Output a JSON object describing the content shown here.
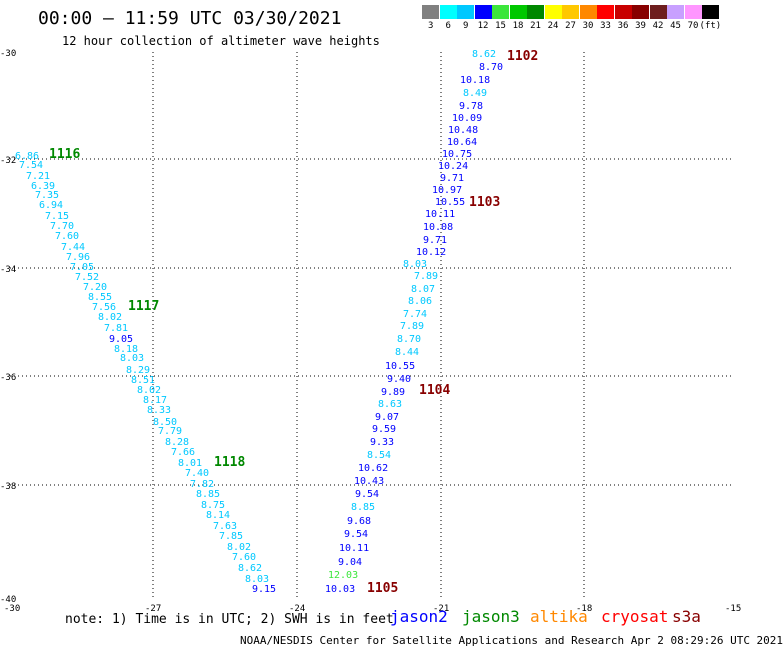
{
  "header": {
    "title": "00:00 – 11:59 UTC 03/30/2021",
    "subtitle": "12 hour collection of altimeter wave heights"
  },
  "colorbar": {
    "labels": [
      "3",
      "6",
      "9",
      "12",
      "15",
      "18",
      "21",
      "24",
      "27",
      "30",
      "33",
      "36",
      "39",
      "42",
      "45",
      "70",
      "(ft)"
    ],
    "colors": [
      "#808080",
      "#00ffff",
      "#00c8ff",
      "#0000ff",
      "#3ce63c",
      "#00c800",
      "#008800",
      "#ffff00",
      "#ffc800",
      "#ff8800",
      "#ff0000",
      "#c80000",
      "#880000",
      "#6e1e1e",
      "#c8a0ff",
      "#ff96ff",
      "#000000"
    ]
  },
  "map": {
    "x_ticks": [
      "-30",
      "-27",
      "-24",
      "-21",
      "-18",
      "-15"
    ],
    "y_ticks": [
      "-30",
      "-32",
      "-34",
      "-36",
      "-38",
      "-40"
    ]
  },
  "tracks": [
    {
      "values": [
        "8.62",
        "8.70",
        "10.18",
        "8.49",
        "9.78",
        "10.09",
        "10.48",
        "10.64",
        "10.75",
        "10.24",
        "9.71",
        "10.97",
        "10.55",
        "10.11",
        "10.08",
        "9.71",
        "10.12",
        "8.03",
        "7.89",
        "8.07",
        "8.06",
        "7.74",
        "7.89",
        "8.70",
        "8.44",
        "10.55",
        "9.40",
        "9.89",
        "8.63",
        "9.07",
        "9.59",
        "9.33",
        "8.54",
        "10.62",
        "10.43",
        "9.54",
        "8.85",
        "9.68",
        "9.54",
        "10.11",
        "9.04",
        "12.03",
        "10.03"
      ],
      "colors": [
        "#00c8ff",
        "#0000ff",
        "#0000ff",
        "#00c8ff",
        "#0000ff",
        "#0000ff",
        "#0000ff",
        "#0000ff",
        "#0000ff",
        "#0000ff",
        "#0000ff",
        "#0000ff",
        "#0000ff",
        "#0000ff",
        "#0000ff",
        "#0000ff",
        "#0000ff",
        "#00c8ff",
        "#00c8ff",
        "#00c8ff",
        "#00c8ff",
        "#00c8ff",
        "#00c8ff",
        "#00c8ff",
        "#00c8ff",
        "#0000ff",
        "#0000ff",
        "#0000ff",
        "#00c8ff",
        "#0000ff",
        "#0000ff",
        "#0000ff",
        "#00c8ff",
        "#0000ff",
        "#0000ff",
        "#0000ff",
        "#00c8ff",
        "#0000ff",
        "#0000ff",
        "#0000ff",
        "#0000ff",
        "#3ce63c",
        "#0000ff"
      ],
      "labels": [
        {
          "text": "1102",
          "color": "#880000"
        },
        {
          "text": "1103",
          "color": "#880000"
        },
        {
          "text": "1104",
          "color": "#880000"
        },
        {
          "text": "1105",
          "color": "#880000"
        }
      ]
    },
    {
      "values": [
        "6.86",
        "7.54",
        "7.21",
        "6.39",
        "7.35",
        "6.94",
        "7.15",
        "7.70",
        "7.60",
        "7.44",
        "7.96",
        "7.05",
        "7.52",
        "7.20",
        "8.55",
        "7.56",
        "8.02",
        "7.81",
        "9.05",
        "8.18",
        "8.03",
        "8.29",
        "8.51",
        "8.02",
        "8.17",
        "8.33",
        "8.50",
        "7.79",
        "8.28",
        "7.66",
        "8.01",
        "7.40",
        "7.82",
        "8.85",
        "8.75",
        "8.14",
        "7.63",
        "7.85",
        "8.02",
        "7.60",
        "8.62",
        "8.03",
        "9.15"
      ],
      "colors": [
        "#00c8ff",
        "#00c8ff",
        "#00c8ff",
        "#00c8ff",
        "#00c8ff",
        "#00c8ff",
        "#00c8ff",
        "#00c8ff",
        "#00c8ff",
        "#00c8ff",
        "#00c8ff",
        "#00c8ff",
        "#00c8ff",
        "#00c8ff",
        "#00c8ff",
        "#00c8ff",
        "#00c8ff",
        "#00c8ff",
        "#0000ff",
        "#00c8ff",
        "#00c8ff",
        "#00c8ff",
        "#00c8ff",
        "#00c8ff",
        "#00c8ff",
        "#00c8ff",
        "#00c8ff",
        "#00c8ff",
        "#00c8ff",
        "#00c8ff",
        "#00c8ff",
        "#00c8ff",
        "#00c8ff",
        "#00c8ff",
        "#00c8ff",
        "#00c8ff",
        "#00c8ff",
        "#00c8ff",
        "#00c8ff",
        "#00c8ff",
        "#00c8ff",
        "#00c8ff",
        "#0000ff"
      ],
      "labels": [
        {
          "text": "1116",
          "color": "#008800"
        },
        {
          "text": "1117",
          "color": "#008800"
        },
        {
          "text": "1118",
          "color": "#008800"
        }
      ]
    }
  ],
  "footer": {
    "note": "note:  1) Time is in UTC; 2) SWH is in feet",
    "credit": "NOAA/NESDIS Center for Satellite Applications and Research   Apr  2 08:29:26 UTC 2021"
  },
  "legend": [
    {
      "name": "jason2",
      "color": "#0000ff"
    },
    {
      "name": "jason3",
      "color": "#008800"
    },
    {
      "name": "altika",
      "color": "#ff8800"
    },
    {
      "name": "cryosat",
      "color": "#ff0000"
    },
    {
      "name": "s3a",
      "color": "#880000"
    }
  ]
}
